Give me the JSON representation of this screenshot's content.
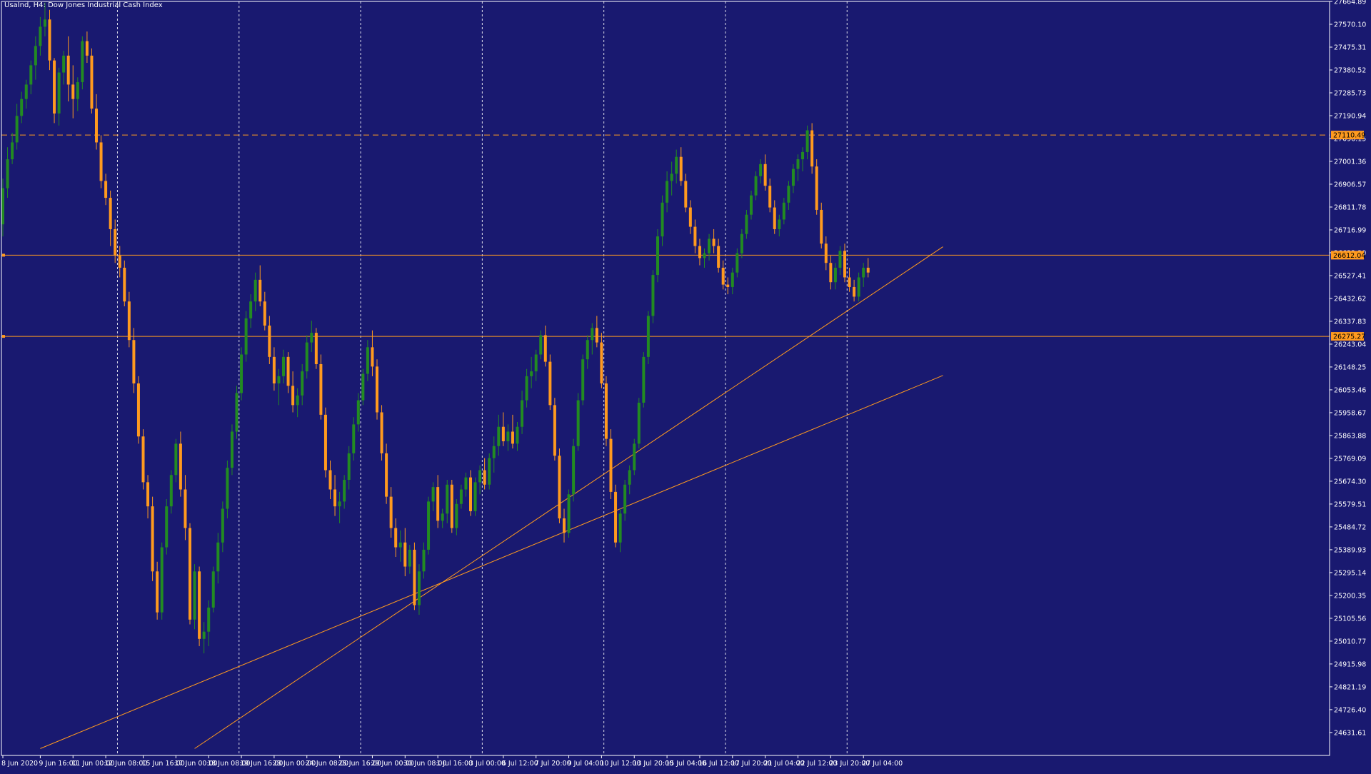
{
  "chart_data": {
    "type": "candlestick",
    "title": "UsaInd, H4:  Dow Jones Industrial Cash Index",
    "colors": {
      "background": "#191970",
      "bull": "#228B22",
      "bear": "#FF9A1F",
      "axis": "#FFFFFF",
      "grid": "#FFFFFF",
      "lines": "#FF9A1F",
      "price_label_bg": "#FF9A1F"
    },
    "ylim": [
      24536.5,
      27664.89
    ],
    "yticks": [
      "27664.89",
      "27570.10",
      "27475.31",
      "27380.52",
      "27285.73",
      "27190.94",
      "27096.15",
      "27001.36",
      "26906.57",
      "26811.78",
      "26716.99",
      "26622.20",
      "26527.41",
      "26432.62",
      "26337.83",
      "26243.04",
      "26148.25",
      "26053.46",
      "25958.67",
      "25863.88",
      "25769.09",
      "25674.30",
      "25579.51",
      "25484.72",
      "25389.93",
      "25295.14",
      "25200.35",
      "25105.56",
      "25010.77",
      "24915.98",
      "24821.19",
      "24726.40",
      "24631.61"
    ],
    "xticks": [
      {
        "bar": 0,
        "label": "8 Jun 2020"
      },
      {
        "bar": 8,
        "label": "9 Jun 16:00"
      },
      {
        "bar": 15,
        "label": "11 Jun 00:00"
      },
      {
        "bar": 22,
        "label": "12 Jun 08:00"
      },
      {
        "bar": 30,
        "label": "15 Jun 16:00"
      },
      {
        "bar": 37,
        "label": "17 Jun 00:00"
      },
      {
        "bar": 44,
        "label": "18 Jun 08:00"
      },
      {
        "bar": 51,
        "label": "19 Jun 16:00"
      },
      {
        "bar": 58,
        "label": "23 Jun 00:00"
      },
      {
        "bar": 65,
        "label": "24 Jun 08:00"
      },
      {
        "bar": 72,
        "label": "25 Jun 16:00"
      },
      {
        "bar": 79,
        "label": "29 Jun 00:00"
      },
      {
        "bar": 86,
        "label": "30 Jun 08:00"
      },
      {
        "bar": 93,
        "label": "1 Jul 16:00"
      },
      {
        "bar": 100,
        "label": "3 Jul 00:00"
      },
      {
        "bar": 107,
        "label": "6 Jul 12:00"
      },
      {
        "bar": 114,
        "label": "7 Jul 20:00"
      },
      {
        "bar": 121,
        "label": "9 Jul 04:00"
      },
      {
        "bar": 128,
        "label": "10 Jul 12:00"
      },
      {
        "bar": 135,
        "label": "13 Jul 20:00"
      },
      {
        "bar": 142,
        "label": "15 Jul 04:00"
      },
      {
        "bar": 149,
        "label": "16 Jul 12:00"
      },
      {
        "bar": 156,
        "label": "17 Jul 20:00"
      },
      {
        "bar": 163,
        "label": "21 Jul 04:00"
      },
      {
        "bar": 170,
        "label": "22 Jul 12:00"
      },
      {
        "bar": 177,
        "label": "23 Jul 20:00"
      },
      {
        "bar": 184,
        "label": "27 Jul 04:00"
      }
    ],
    "vertical_gridlines_at_bar": [
      24.5,
      50.5,
      76.5,
      102.5,
      128.5,
      154.5,
      180.5
    ],
    "horizontal_levels": [
      {
        "price": 27110.49,
        "label": "27110.49",
        "style": "dashed"
      },
      {
        "price": 26612.04,
        "label": "26612.04",
        "style": "solid"
      },
      {
        "price": 26275.27,
        "label": "26275.27",
        "style": "solid"
      }
    ],
    "trendlines": [
      {
        "from": {
          "bar": 8,
          "price": 24565
        },
        "to": {
          "bar": 201,
          "price": 26113
        }
      },
      {
        "from": {
          "bar": 41,
          "price": 24565
        },
        "to": {
          "bar": 201,
          "price": 26647
        }
      }
    ],
    "candles": [
      [
        26740,
        26930,
        26690,
        26890
      ],
      [
        26890,
        27060,
        26850,
        27010
      ],
      [
        27010,
        27120,
        26990,
        27080
      ],
      [
        27080,
        27240,
        27050,
        27190
      ],
      [
        27190,
        27290,
        27160,
        27260
      ],
      [
        27260,
        27340,
        27220,
        27320
      ],
      [
        27320,
        27420,
        27280,
        27400
      ],
      [
        27400,
        27520,
        27340,
        27480
      ],
      [
        27480,
        27600,
        27440,
        27560
      ],
      [
        27560,
        27660,
        27520,
        27590
      ],
      [
        27590,
        27630,
        27380,
        27420
      ],
      [
        27420,
        27430,
        27160,
        27200
      ],
      [
        27200,
        27390,
        27150,
        27370
      ],
      [
        27370,
        27460,
        27320,
        27440
      ],
      [
        27440,
        27520,
        27250,
        27320
      ],
      [
        27320,
        27400,
        27180,
        27260
      ],
      [
        27260,
        27350,
        27210,
        27330
      ],
      [
        27330,
        27520,
        27300,
        27500
      ],
      [
        27500,
        27540,
        27410,
        27440
      ],
      [
        27440,
        27470,
        27200,
        27220
      ],
      [
        27220,
        27280,
        27050,
        27080
      ],
      [
        27080,
        27110,
        26890,
        26920
      ],
      [
        26920,
        26950,
        26820,
        26850
      ],
      [
        26850,
        26880,
        26650,
        26720
      ],
      [
        26720,
        26760,
        26580,
        26610
      ],
      [
        26610,
        26650,
        26520,
        26560
      ],
      [
        26560,
        26590,
        26400,
        26420
      ],
      [
        26420,
        26460,
        26230,
        26260
      ],
      [
        26260,
        26310,
        26040,
        26080
      ],
      [
        26080,
        26110,
        25830,
        25860
      ],
      [
        25860,
        25890,
        25640,
        25670
      ],
      [
        25670,
        25700,
        25520,
        25570
      ],
      [
        25570,
        25610,
        25260,
        25300
      ],
      [
        25300,
        25340,
        25100,
        25130
      ],
      [
        25130,
        25420,
        25100,
        25400
      ],
      [
        25400,
        25600,
        25370,
        25570
      ],
      [
        25570,
        25720,
        25540,
        25700
      ],
      [
        25700,
        25850,
        25670,
        25830
      ],
      [
        25830,
        25880,
        25610,
        25640
      ],
      [
        25640,
        25700,
        25430,
        25480
      ],
      [
        25480,
        25500,
        25080,
        25100
      ],
      [
        25100,
        25330,
        25060,
        25300
      ],
      [
        25300,
        25320,
        24990,
        25020
      ],
      [
        25020,
        25090,
        24960,
        25050
      ],
      [
        25050,
        25180,
        24990,
        25150
      ],
      [
        25150,
        25320,
        25130,
        25300
      ],
      [
        25300,
        25460,
        25250,
        25420
      ],
      [
        25420,
        25590,
        25380,
        25560
      ],
      [
        25560,
        25760,
        25520,
        25730
      ],
      [
        25730,
        25910,
        25700,
        25880
      ],
      [
        25880,
        26070,
        25850,
        26040
      ],
      [
        26040,
        26230,
        26010,
        26200
      ],
      [
        26200,
        26380,
        26170,
        26350
      ],
      [
        26350,
        26450,
        26310,
        26420
      ],
      [
        26420,
        26540,
        26380,
        26510
      ],
      [
        26510,
        26570,
        26400,
        26420
      ],
      [
        26420,
        26460,
        26300,
        26320
      ],
      [
        26320,
        26360,
        26160,
        26190
      ],
      [
        26190,
        26230,
        26050,
        26080
      ],
      [
        26080,
        26140,
        25990,
        26110
      ],
      [
        26110,
        26220,
        26080,
        26190
      ],
      [
        26190,
        26210,
        26040,
        26070
      ],
      [
        26070,
        26130,
        25960,
        25990
      ],
      [
        25990,
        26060,
        25940,
        26030
      ],
      [
        26030,
        26160,
        25990,
        26130
      ],
      [
        26130,
        26280,
        26100,
        26250
      ],
      [
        26250,
        26340,
        26210,
        26290
      ],
      [
        26290,
        26310,
        26140,
        26160
      ],
      [
        26160,
        26200,
        25930,
        25950
      ],
      [
        25950,
        25980,
        25690,
        25720
      ],
      [
        25720,
        25760,
        25600,
        25640
      ],
      [
        25640,
        25700,
        25530,
        25570
      ],
      [
        25570,
        25630,
        25500,
        25590
      ],
      [
        25590,
        25700,
        25560,
        25680
      ],
      [
        25680,
        25820,
        25640,
        25790
      ],
      [
        25790,
        25940,
        25760,
        25910
      ],
      [
        25910,
        26040,
        25880,
        26010
      ],
      [
        26010,
        26140,
        25990,
        26120
      ],
      [
        26120,
        26260,
        26090,
        26230
      ],
      [
        26230,
        26300,
        26110,
        26150
      ],
      [
        26150,
        26180,
        25930,
        25960
      ],
      [
        25960,
        25990,
        25760,
        25790
      ],
      [
        25790,
        25830,
        25580,
        25610
      ],
      [
        25610,
        25650,
        25440,
        25480
      ],
      [
        25480,
        25520,
        25360,
        25400
      ],
      [
        25400,
        25470,
        25340,
        25420
      ],
      [
        25420,
        25480,
        25280,
        25320
      ],
      [
        25320,
        25410,
        25290,
        25390
      ],
      [
        25390,
        25420,
        25140,
        25160
      ],
      [
        25160,
        25330,
        25120,
        25300
      ],
      [
        25300,
        25420,
        25270,
        25390
      ],
      [
        25390,
        25610,
        25370,
        25590
      ],
      [
        25590,
        25670,
        25550,
        25650
      ],
      [
        25650,
        25700,
        25480,
        25510
      ],
      [
        25510,
        25560,
        25480,
        25540
      ],
      [
        25540,
        25680,
        25500,
        25660
      ],
      [
        25660,
        25680,
        25460,
        25480
      ],
      [
        25480,
        25600,
        25450,
        25580
      ],
      [
        25580,
        25660,
        25560,
        25640
      ],
      [
        25640,
        25710,
        25610,
        25690
      ],
      [
        25690,
        25720,
        25530,
        25550
      ],
      [
        25550,
        25690,
        25530,
        25670
      ],
      [
        25670,
        25740,
        25620,
        25720
      ],
      [
        25720,
        25770,
        25640,
        25660
      ],
      [
        25660,
        25790,
        25640,
        25770
      ],
      [
        25770,
        25860,
        25710,
        25820
      ],
      [
        25820,
        25950,
        25780,
        25900
      ],
      [
        25900,
        25960,
        25820,
        25840
      ],
      [
        25840,
        25910,
        25800,
        25880
      ],
      [
        25880,
        25950,
        25810,
        25830
      ],
      [
        25830,
        25920,
        25800,
        25900
      ],
      [
        25900,
        26050,
        25870,
        26010
      ],
      [
        26010,
        26140,
        25980,
        26110
      ],
      [
        26110,
        26190,
        26060,
        26130
      ],
      [
        26130,
        26220,
        26090,
        26200
      ],
      [
        26200,
        26300,
        26180,
        26280
      ],
      [
        26280,
        26320,
        26150,
        26170
      ],
      [
        26170,
        26200,
        25970,
        25990
      ],
      [
        25990,
        26020,
        25760,
        25780
      ],
      [
        25780,
        25810,
        25500,
        25520
      ],
      [
        25520,
        25560,
        25420,
        25460
      ],
      [
        25460,
        25640,
        25440,
        25620
      ],
      [
        25620,
        25850,
        25590,
        25820
      ],
      [
        25820,
        26040,
        25800,
        26010
      ],
      [
        26010,
        26200,
        25990,
        26180
      ],
      [
        26180,
        26280,
        26140,
        26260
      ],
      [
        26260,
        26330,
        26200,
        26310
      ],
      [
        26310,
        26360,
        26230,
        26250
      ],
      [
        26250,
        26290,
        26060,
        26080
      ],
      [
        26080,
        26110,
        25820,
        25850
      ],
      [
        25850,
        25890,
        25600,
        25630
      ],
      [
        25630,
        25660,
        25400,
        25420
      ],
      [
        25420,
        25560,
        25380,
        25540
      ],
      [
        25540,
        25680,
        25510,
        25660
      ],
      [
        25660,
        25740,
        25620,
        25720
      ],
      [
        25720,
        25850,
        25700,
        25830
      ],
      [
        25830,
        26020,
        25810,
        26000
      ],
      [
        26000,
        26210,
        25980,
        26190
      ],
      [
        26190,
        26380,
        26160,
        26360
      ],
      [
        26360,
        26550,
        26330,
        26530
      ],
      [
        26530,
        26720,
        26500,
        26690
      ],
      [
        26690,
        26860,
        26650,
        26830
      ],
      [
        26830,
        26960,
        26790,
        26920
      ],
      [
        26920,
        27000,
        26860,
        26950
      ],
      [
        26950,
        27050,
        26910,
        27020
      ],
      [
        27020,
        27060,
        26900,
        26920
      ],
      [
        26920,
        26950,
        26790,
        26810
      ],
      [
        26810,
        26840,
        26700,
        26730
      ],
      [
        26730,
        26760,
        26620,
        26650
      ],
      [
        26650,
        26680,
        26570,
        26600
      ],
      [
        26600,
        26640,
        26560,
        26620
      ],
      [
        26620,
        26700,
        26590,
        26680
      ],
      [
        26680,
        26720,
        26620,
        26650
      ],
      [
        26650,
        26680,
        26540,
        26560
      ],
      [
        26560,
        26590,
        26470,
        26490
      ],
      [
        26490,
        26520,
        26450,
        26480
      ],
      [
        26480,
        26560,
        26450,
        26540
      ],
      [
        26540,
        26640,
        26520,
        26620
      ],
      [
        26620,
        26720,
        26600,
        26700
      ],
      [
        26700,
        26800,
        26680,
        26780
      ],
      [
        26780,
        26880,
        26760,
        26860
      ],
      [
        26860,
        26960,
        26840,
        26940
      ],
      [
        26940,
        27010,
        26910,
        26990
      ],
      [
        26990,
        27030,
        26880,
        26900
      ],
      [
        26900,
        26930,
        26790,
        26810
      ],
      [
        26810,
        26840,
        26700,
        26720
      ],
      [
        26720,
        26780,
        26690,
        26760
      ],
      [
        26760,
        26850,
        26740,
        26830
      ],
      [
        26830,
        26920,
        26800,
        26900
      ],
      [
        26900,
        26990,
        26870,
        26970
      ],
      [
        26970,
        27030,
        26920,
        27010
      ],
      [
        27010,
        27060,
        26960,
        27040
      ],
      [
        27040,
        27150,
        27010,
        27130
      ],
      [
        27130,
        27160,
        26950,
        26980
      ],
      [
        26980,
        27010,
        26780,
        26800
      ],
      [
        26800,
        26830,
        26640,
        26660
      ],
      [
        26660,
        26690,
        26550,
        26580
      ],
      [
        26580,
        26610,
        26470,
        26500
      ],
      [
        26500,
        26580,
        26470,
        26560
      ],
      [
        26560,
        26650,
        26530,
        26630
      ],
      [
        26630,
        26660,
        26500,
        26520
      ],
      [
        26520,
        26560,
        26460,
        26480
      ],
      [
        26480,
        26510,
        26420,
        26440
      ],
      [
        26440,
        26540,
        26420,
        26520
      ],
      [
        26520,
        26580,
        26480,
        26560
      ],
      [
        26560,
        26600,
        26520,
        26540
      ]
    ]
  }
}
